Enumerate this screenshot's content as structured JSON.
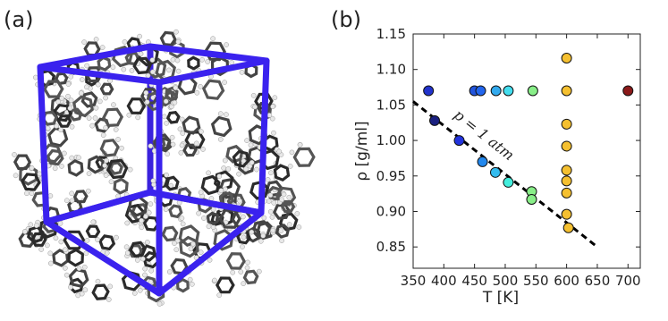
{
  "panel_labels": [
    "(a)",
    "(b)"
  ],
  "chart_data": {
    "type": "scatter",
    "xlabel": "T [K]",
    "ylabel": "ρ [g/ml]",
    "xlim": [
      350,
      720
    ],
    "ylim": [
      0.82,
      1.15
    ],
    "xticks": [
      350,
      400,
      450,
      500,
      550,
      600,
      650,
      700
    ],
    "yticks": [
      0.85,
      {
        "value": 0.9,
        "label": "0.90"
      },
      0.95,
      {
        "value": 1,
        "label": "1.00"
      },
      1.05,
      {
        "value": 1.1,
        "label": "1.10"
      },
      1.15
    ],
    "x": [
      375,
      450,
      460,
      485,
      505,
      545,
      600,
      700,
      385,
      425,
      463,
      484,
      505,
      543,
      543,
      603,
      600,
      600,
      600,
      600,
      600,
      600,
      600
    ],
    "values": [
      1.07,
      1.07,
      1.07,
      1.07,
      1.07,
      1.07,
      1.07,
      1.07,
      1.028,
      1.0,
      0.97,
      0.955,
      0.941,
      0.928,
      0.917,
      0.877,
      1.116,
      1.023,
      0.992,
      0.958,
      0.943,
      0.926,
      0.896
    ],
    "colors": [
      "#2233cc",
      "#2255dd",
      "#2266ee",
      "#33aaee",
      "#44ddee",
      "#88ee88",
      "#f5c030",
      "#8b1a1a",
      "#1a2080",
      "#2233dd",
      "#2288ee",
      "#33bbee",
      "#44eedd",
      "#88ee88",
      "#88ee88",
      "#f5c030",
      "#f5c030",
      "#f5c030",
      "#f5c030",
      "#f5c030",
      "#f5c030",
      "#f5c030",
      "#f5c030"
    ],
    "fit_line": {
      "x": [
        350,
        650
      ],
      "y": [
        1.055,
        0.85
      ],
      "label": "p = 1 atm",
      "color": "#000000"
    }
  }
}
